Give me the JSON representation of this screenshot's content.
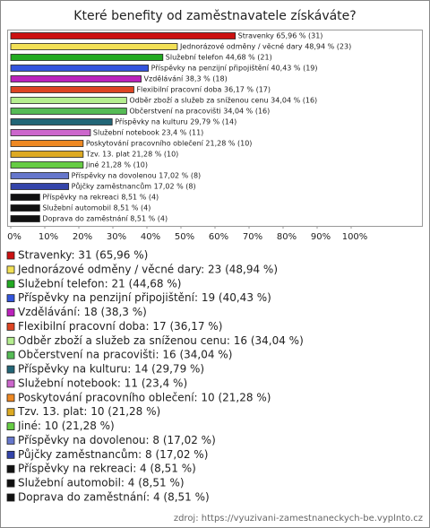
{
  "chart_data": {
    "type": "bar",
    "orientation": "horizontal",
    "title": "Které benefity od zaměstnavatele získáváte?",
    "categories": [
      "Stravenky",
      "Jednorázové odměny / věcné dary",
      "Služební telefon",
      "Příspěvky na penzijní připojištění",
      "Vzdělávání",
      "Flexibilní pracovní doba",
      "Odběr zboží a služeb za sníženou cenu",
      "Občerstvení na pracovišti",
      "Příspěvky na kulturu",
      "Služební notebook",
      "Poskytování pracovního oblečení",
      "Tzv. 13. plat",
      "Jiné",
      "Příspěvky na dovolenou",
      "Půjčky zaměstnancům",
      "Příspěvky na rekreaci",
      "Služební automobil",
      "Doprava do zaměstnání"
    ],
    "values": [
      65.96,
      48.94,
      44.68,
      40.43,
      38.3,
      36.17,
      34.04,
      34.04,
      29.79,
      23.4,
      21.28,
      21.28,
      21.28,
      17.02,
      17.02,
      8.51,
      8.51,
      8.51
    ],
    "value_labels": [
      "Stravenky 65,96 % (31)",
      "Jednorázové odměny / věcné dary 48,94 % (23)",
      "Služební telefon 44,68 % (21)",
      "Příspěvky na penzijní připojištění 40,43 % (19)",
      "Vzdělávání 38,3 % (18)",
      "Flexibilní pracovní doba 36,17 % (17)",
      "Odběr zboží a služeb za sníženou cenu 34,04 % (16)",
      "Občerstvení na pracovišti 34,04 % (16)",
      "Příspěvky na kulturu 29,79 % (14)",
      "Služební notebook 23,4 % (11)",
      "Poskytování pracovního oblečení 21,28 % (10)",
      "Tzv. 13. plat 21,28 % (10)",
      "Jiné 21,28 % (10)",
      "Příspěvky na dovolenou 17,02 % (8)",
      "Půjčky zaměstnancům 17,02 % (8)",
      "Příspěvky na rekreaci 8,51 % (4)",
      "Služební automobil 8,51 % (4)",
      "Doprava do zaměstnání 8,51 % (4)"
    ],
    "legend_labels": [
      "Stravenky: 31 (65,96 %)",
      "Jednorázové odměny / věcné dary: 23 (48,94 %)",
      "Služební telefon: 21 (44,68 %)",
      "Příspěvky na penzijní připojištění: 19 (40,43 %)",
      "Vzdělávání: 18 (38,3 %)",
      "Flexibilní pracovní doba: 17 (36,17 %)",
      "Odběr zboží a služeb za sníženou cenu: 16 (34,04 %)",
      "Občerstvení na pracovišti: 16 (34,04 %)",
      "Příspěvky na kulturu: 14 (29,79 %)",
      "Služební notebook: 11 (23,4 %)",
      "Poskytování pracovního oblečení: 10 (21,28 %)",
      "Tzv. 13. plat: 10 (21,28 %)",
      "Jiné: 10 (21,28 %)",
      "Příspěvky na dovolenou: 8 (17,02 %)",
      "Půjčky zaměstnancům: 8 (17,02 %)",
      "Příspěvky na rekreaci: 4 (8,51 %)",
      "Služební automobil: 4 (8,51 %)",
      "Doprava do zaměstnání: 4 (8,51 %)"
    ],
    "colors": [
      "#cc1111",
      "#f2e055",
      "#22aa22",
      "#3355dd",
      "#bb22bb",
      "#dd4422",
      "#b5ee8f",
      "#55bb55",
      "#226677",
      "#cc66cc",
      "#ee8822",
      "#ddaa22",
      "#66cc44",
      "#6677cc",
      "#3344aa",
      "#111111",
      "#111111",
      "#111111"
    ],
    "xlim": [
      0,
      100
    ],
    "xticks": [
      {
        "value": 0,
        "label": "0%"
      },
      {
        "value": 10,
        "label": "10%"
      },
      {
        "value": 20,
        "label": "20%"
      },
      {
        "value": 30,
        "label": "30%"
      },
      {
        "value": 40,
        "label": "40%"
      },
      {
        "value": 50,
        "label": "50%"
      },
      {
        "value": 60,
        "label": "60%"
      },
      {
        "value": 70,
        "label": "70%"
      },
      {
        "value": 80,
        "label": "80%"
      },
      {
        "value": 90,
        "label": "90%"
      },
      {
        "value": 100,
        "label": "100%"
      }
    ],
    "source": "zdroj: https://vyuzivani-zamestnaneckych-be.vyplnto.cz"
  }
}
